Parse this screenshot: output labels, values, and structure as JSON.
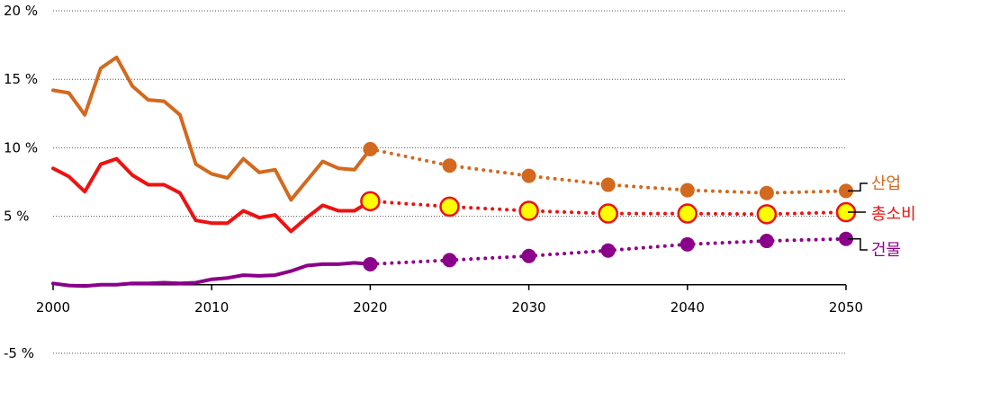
{
  "chart_data": {
    "type": "line",
    "title": "",
    "xlabel": "",
    "ylabel": "",
    "xlim": [
      2000,
      2050
    ],
    "ylim": [
      -5,
      20
    ],
    "y_ticks": [
      {
        "value": 20,
        "label": "20 %"
      },
      {
        "value": 15,
        "label": "15 %"
      },
      {
        "value": 10,
        "label": "10 %"
      },
      {
        "value": 5,
        "label": "5 %"
      },
      {
        "value": -5,
        "label": "-5 %"
      }
    ],
    "x_ticks": [
      {
        "value": 2000,
        "label": "2000"
      },
      {
        "value": 2010,
        "label": "2010"
      },
      {
        "value": 2020,
        "label": "2020"
      },
      {
        "value": 2030,
        "label": "2030"
      },
      {
        "value": 2040,
        "label": "2040"
      },
      {
        "value": 2050,
        "label": "2050"
      }
    ],
    "grid": "horizontal dotted",
    "legend": "right, labels at line ends",
    "series": [
      {
        "name": "산업",
        "color": "#D2691E",
        "historical": {
          "x": [
            2000,
            2001,
            2002,
            2003,
            2004,
            2005,
            2006,
            2007,
            2008,
            2009,
            2010,
            2011,
            2012,
            2013,
            2014,
            2015,
            2016,
            2017,
            2018,
            2019,
            2020
          ],
          "y": [
            14.2,
            14.0,
            12.4,
            15.8,
            16.6,
            14.5,
            13.5,
            13.4,
            12.4,
            8.8,
            8.1,
            7.8,
            9.2,
            8.2,
            8.4,
            6.2,
            7.6,
            9.0,
            8.5,
            8.4,
            9.9
          ]
        },
        "projection": {
          "x": [
            2020,
            2025,
            2030,
            2035,
            2040,
            2045,
            2050
          ],
          "y": [
            9.9,
            8.7,
            7.95,
            7.3,
            6.9,
            6.7,
            6.85
          ]
        }
      },
      {
        "name": "총소비",
        "color": "#EE1111",
        "marker_fill": "#FFFF00",
        "historical": {
          "x": [
            2000,
            2001,
            2002,
            2003,
            2004,
            2005,
            2006,
            2007,
            2008,
            2009,
            2010,
            2011,
            2012,
            2013,
            2014,
            2015,
            2016,
            2017,
            2018,
            2019,
            2020
          ],
          "y": [
            8.5,
            7.9,
            6.8,
            8.8,
            9.2,
            8.0,
            7.3,
            7.3,
            6.7,
            4.7,
            4.5,
            4.5,
            5.4,
            4.9,
            5.1,
            3.9,
            4.9,
            5.8,
            5.4,
            5.4,
            6.1
          ]
        },
        "projection": {
          "x": [
            2020,
            2025,
            2030,
            2035,
            2040,
            2045,
            2050
          ],
          "y": [
            6.1,
            5.7,
            5.4,
            5.2,
            5.2,
            5.15,
            5.3
          ]
        }
      },
      {
        "name": "건물",
        "color": "#8B008B",
        "historical": {
          "x": [
            2000,
            2001,
            2002,
            2003,
            2004,
            2005,
            2006,
            2007,
            2008,
            2009,
            2010,
            2011,
            2012,
            2013,
            2014,
            2015,
            2016,
            2017,
            2018,
            2019,
            2020
          ],
          "y": [
            0.1,
            -0.05,
            -0.1,
            0.0,
            0.0,
            0.1,
            0.1,
            0.15,
            0.1,
            0.15,
            0.4,
            0.5,
            0.7,
            0.65,
            0.7,
            1.0,
            1.4,
            1.5,
            1.5,
            1.6,
            1.5
          ]
        },
        "projection": {
          "x": [
            2020,
            2025,
            2030,
            2035,
            2040,
            2045,
            2050
          ],
          "y": [
            1.5,
            1.8,
            2.1,
            2.5,
            2.95,
            3.2,
            3.35
          ]
        }
      }
    ]
  }
}
